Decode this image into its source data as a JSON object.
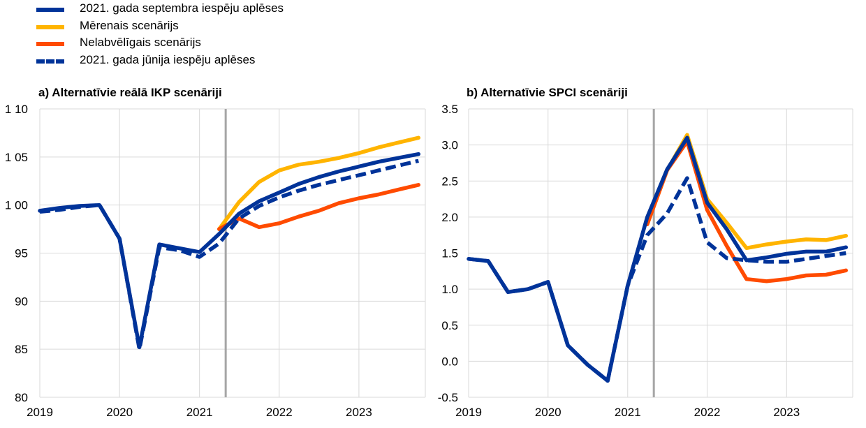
{
  "legend": [
    {
      "label": "2021. gada septembra iespēju aplēses",
      "color": "#003399",
      "dashed": false
    },
    {
      "label": "Mērenais scenārijs",
      "color": "#FFB400",
      "dashed": false
    },
    {
      "label": "Nelabvēlīgais scenārijs",
      "color": "#FF4B00",
      "dashed": false
    },
    {
      "label": "2021. gada jūnija iespēju aplēses",
      "color": "#003399",
      "dashed": true
    }
  ],
  "chart_data": [
    {
      "type": "line",
      "title": "a) Alternatīvie reālā IKP scenāriji",
      "xlim": [
        "2019-01-01",
        "2023-11-01"
      ],
      "ylim": [
        80,
        110
      ],
      "y_ticks": [
        80,
        85,
        90,
        95,
        100,
        105,
        110
      ],
      "y_tick_labels": [
        "80",
        "85",
        "90",
        "95",
        "1 00",
        "1 05",
        "1 10"
      ],
      "x_ticks": [
        "2019-01-01",
        "2020-01-01",
        "2021-01-01",
        "2022-01-01",
        "2023-01-01"
      ],
      "x_tick_labels": [
        "2019",
        "2020",
        "2021",
        "2022",
        "2023"
      ],
      "vline": "2021-05-01",
      "grid": true,
      "series": [
        {
          "name": "Mērenais scenārijs",
          "color": "#FFB400",
          "dashed": false,
          "x": [
            "2021-04-01",
            "2021-07-01",
            "2021-10-01",
            "2022-01-01",
            "2022-04-01",
            "2022-07-01",
            "2022-10-01",
            "2023-01-01",
            "2023-04-01",
            "2023-07-01",
            "2023-10-01"
          ],
          "y": [
            97.5,
            100.3,
            102.4,
            103.6,
            104.2,
            104.5,
            104.9,
            105.4,
            106.0,
            106.5,
            107.0
          ]
        },
        {
          "name": "Nelabvēlīgais scenārijs",
          "color": "#FF4B00",
          "dashed": false,
          "x": [
            "2021-04-01",
            "2021-07-01",
            "2021-10-01",
            "2022-01-01",
            "2022-04-01",
            "2022-07-01",
            "2022-10-01",
            "2023-01-01",
            "2023-04-01",
            "2023-07-01",
            "2023-10-01"
          ],
          "y": [
            97.5,
            98.6,
            97.7,
            98.1,
            98.8,
            99.4,
            100.2,
            100.7,
            101.1,
            101.6,
            102.1
          ]
        },
        {
          "name": "2021. gada jūnija iespēju aplēses",
          "color": "#003399",
          "dashed": true,
          "x": [
            "2019-01-01",
            "2019-04-01",
            "2019-07-01",
            "2019-10-01",
            "2020-01-01",
            "2020-04-01",
            "2020-07-01",
            "2020-10-01",
            "2021-01-01",
            "2021-04-01",
            "2021-07-01",
            "2021-10-01",
            "2022-01-01",
            "2022-04-01",
            "2022-07-01",
            "2022-10-01",
            "2023-01-01",
            "2023-04-01",
            "2023-07-01",
            "2023-10-01"
          ],
          "y": [
            99.3,
            99.5,
            99.8,
            100.0,
            96.5,
            85.0,
            95.6,
            95.3,
            94.6,
            96.0,
            98.6,
            99.9,
            100.8,
            101.5,
            102.1,
            102.6,
            103.1,
            103.6,
            104.1,
            104.6
          ]
        },
        {
          "name": "2021. gada septembra iespēju aplēses",
          "color": "#003399",
          "dashed": false,
          "x": [
            "2019-01-01",
            "2019-04-01",
            "2019-07-01",
            "2019-10-01",
            "2020-01-01",
            "2020-04-01",
            "2020-07-01",
            "2020-10-01",
            "2021-01-01",
            "2021-04-01",
            "2021-07-01",
            "2021-10-01",
            "2022-01-01",
            "2022-04-01",
            "2022-07-01",
            "2022-10-01",
            "2023-01-01",
            "2023-04-01",
            "2023-07-01",
            "2023-10-01"
          ],
          "y": [
            99.4,
            99.7,
            99.9,
            100.0,
            96.5,
            85.2,
            95.9,
            95.5,
            95.1,
            97.0,
            99.1,
            100.4,
            101.3,
            102.2,
            102.9,
            103.5,
            104.0,
            104.5,
            104.9,
            105.3
          ]
        }
      ]
    },
    {
      "type": "line",
      "title": "b) Alternatīvie SPCI scenāriji",
      "xlim": [
        "2019-01-01",
        "2023-11-01"
      ],
      "ylim": [
        -0.5,
        3.5
      ],
      "y_ticks": [
        -0.5,
        0.0,
        0.5,
        1.0,
        1.5,
        2.0,
        2.5,
        3.0,
        3.5
      ],
      "y_tick_labels": [
        "-0.5",
        "0.0",
        "0.5",
        "1.0",
        "1.5",
        "2.0",
        "2.5",
        "3.0",
        "3.5"
      ],
      "x_ticks": [
        "2019-01-01",
        "2020-01-01",
        "2021-01-01",
        "2022-01-01",
        "2023-01-01"
      ],
      "x_tick_labels": [
        "2019",
        "2020",
        "2021",
        "2022",
        "2023"
      ],
      "vline": "2021-05-01",
      "grid": true,
      "series": [
        {
          "name": "Mērenais scenārijs",
          "color": "#FFB400",
          "dashed": false,
          "x": [
            "2021-04-01",
            "2021-07-01",
            "2021-10-01",
            "2022-01-01",
            "2022-04-01",
            "2022-07-01",
            "2022-10-01",
            "2023-01-01",
            "2023-04-01",
            "2023-07-01",
            "2023-10-01"
          ],
          "y": [
            1.9,
            2.65,
            3.14,
            2.25,
            1.92,
            1.57,
            1.62,
            1.66,
            1.69,
            1.68,
            1.74
          ]
        },
        {
          "name": "Nelabvēlīgais scenārijs",
          "color": "#FF4B00",
          "dashed": false,
          "x": [
            "2021-04-01",
            "2021-07-01",
            "2021-10-01",
            "2022-01-01",
            "2022-04-01",
            "2022-07-01",
            "2022-10-01",
            "2023-01-01",
            "2023-04-01",
            "2023-07-01",
            "2023-10-01"
          ],
          "y": [
            1.9,
            2.65,
            3.05,
            2.1,
            1.6,
            1.14,
            1.11,
            1.14,
            1.19,
            1.2,
            1.26
          ]
        },
        {
          "name": "2021. gada jūnija iespēju aplēses",
          "color": "#003399",
          "dashed": true,
          "x": [
            "2019-01-01",
            "2019-04-01",
            "2019-07-01",
            "2019-10-01",
            "2020-01-01",
            "2020-04-01",
            "2020-07-01",
            "2020-10-01",
            "2021-01-01",
            "2021-04-01",
            "2021-07-01",
            "2021-10-01",
            "2022-01-01",
            "2022-04-01",
            "2022-07-01",
            "2022-10-01",
            "2023-01-01",
            "2023-04-01",
            "2023-07-01",
            "2023-10-01"
          ],
          "y": [
            1.42,
            1.39,
            0.96,
            1.0,
            1.1,
            0.22,
            -0.05,
            -0.27,
            1.05,
            1.75,
            2.05,
            2.54,
            1.65,
            1.43,
            1.4,
            1.38,
            1.38,
            1.42,
            1.46,
            1.5
          ]
        },
        {
          "name": "2021. gada septembra iespēju aplēses",
          "color": "#003399",
          "dashed": false,
          "x": [
            "2019-01-01",
            "2019-04-01",
            "2019-07-01",
            "2019-10-01",
            "2020-01-01",
            "2020-04-01",
            "2020-07-01",
            "2020-10-01",
            "2021-01-01",
            "2021-04-01",
            "2021-07-01",
            "2021-10-01",
            "2022-01-01",
            "2022-04-01",
            "2022-07-01",
            "2022-10-01",
            "2023-01-01",
            "2023-04-01",
            "2023-07-01",
            "2023-10-01"
          ],
          "y": [
            1.42,
            1.39,
            0.96,
            1.0,
            1.1,
            0.22,
            -0.05,
            -0.27,
            1.05,
            2.0,
            2.66,
            3.1,
            2.2,
            1.83,
            1.4,
            1.44,
            1.49,
            1.52,
            1.52,
            1.58
          ]
        }
      ]
    }
  ]
}
